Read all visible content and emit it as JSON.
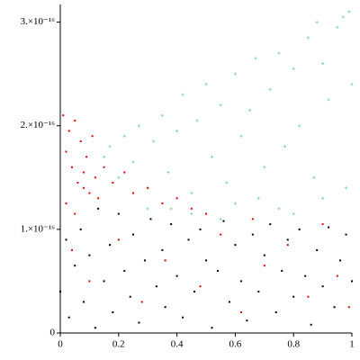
{
  "chart_data": {
    "type": "scatter",
    "xlim": [
      0,
      1
    ],
    "ylim": [
      0,
      3.17e-16
    ],
    "xticks": [
      0,
      0.2,
      0.4,
      0.6,
      0.8,
      1
    ],
    "yticks": [
      0,
      {
        "value": 1e-16,
        "label": "1.×10⁻¹⁶"
      },
      {
        "value": 2e-16,
        "label": "2.×10⁻¹⁶"
      },
      {
        "value": 3e-16,
        "label": "3.×10⁻¹⁶"
      }
    ],
    "grid": false,
    "series": [
      {
        "color": "#80dca2",
        "marker": "cross",
        "x": [
          0.15,
          0.17,
          0.2,
          0.22,
          0.25,
          0.27,
          0.3,
          0.32,
          0.35,
          0.37,
          0.4,
          0.42,
          0.45,
          0.47,
          0.5,
          0.52,
          0.55,
          0.57,
          0.6,
          0.62,
          0.65,
          0.67,
          0.7,
          0.72,
          0.75,
          0.77,
          0.8,
          0.82,
          0.85,
          0.87,
          0.9,
          0.92,
          0.95,
          0.97,
          0.99,
          1.0,
          0.88,
          0.3,
          0.45,
          0.6,
          0.75,
          0.9,
          0.55,
          0.8,
          0.38,
          0.68,
          0.98
        ],
        "y": [
          1.7e-16,
          1.8e-16,
          1.5e-16,
          1.9e-16,
          1.65e-16,
          2e-16,
          1.4e-16,
          1.85e-16,
          2.1e-16,
          1.55e-16,
          1.95e-16,
          2.3e-16,
          1.35e-16,
          2.05e-16,
          2.4e-16,
          1.7e-16,
          2.2e-16,
          1.45e-16,
          2.5e-16,
          1.9e-16,
          2.15e-16,
          2.65e-16,
          1.6e-16,
          2.35e-16,
          2.7e-16,
          1.8e-16,
          2.55e-16,
          2e-16,
          2.85e-16,
          1.5e-16,
          2.6e-16,
          2.25e-16,
          2.95e-16,
          3.05e-16,
          3.1e-16,
          2.4e-16,
          3e-16,
          1.2e-16,
          1.15e-16,
          1.25e-16,
          1.2e-16,
          1.3e-16,
          1.1e-16,
          1.15e-16,
          1.2e-16,
          1.3e-16,
          1.4e-16
        ]
      },
      {
        "color": "#000000",
        "marker": "dot",
        "x": [
          0.0,
          0.02,
          0.03,
          0.05,
          0.07,
          0.08,
          0.1,
          0.12,
          0.13,
          0.15,
          0.17,
          0.18,
          0.2,
          0.22,
          0.24,
          0.25,
          0.27,
          0.29,
          0.31,
          0.33,
          0.35,
          0.36,
          0.38,
          0.4,
          0.42,
          0.44,
          0.46,
          0.48,
          0.5,
          0.52,
          0.54,
          0.56,
          0.58,
          0.6,
          0.62,
          0.64,
          0.66,
          0.68,
          0.7,
          0.72,
          0.74,
          0.76,
          0.78,
          0.8,
          0.82,
          0.84,
          0.86,
          0.88,
          0.9,
          0.92,
          0.94,
          0.96,
          0.98,
          1.0
        ],
        "y": [
          4e-17,
          9e-17,
          1.5e-17,
          6.5e-17,
          1e-16,
          3e-17,
          7.5e-17,
          5e-18,
          1.2e-16,
          5e-17,
          8.5e-17,
          2e-17,
          1.15e-16,
          6e-17,
          3.5e-17,
          9.5e-17,
          1e-17,
          7e-17,
          1.1e-16,
          4.5e-17,
          8e-17,
          2.5e-17,
          1.05e-16,
          5.5e-17,
          1.5e-17,
          9e-17,
          4e-17,
          1e-16,
          7e-17,
          5e-18,
          6e-17,
          1.08e-16,
          3e-17,
          8.5e-17,
          5e-17,
          1.2e-17,
          9.5e-17,
          4e-17,
          7.5e-17,
          1.05e-16,
          2e-17,
          6e-17,
          9e-17,
          3.5e-17,
          1e-16,
          5.5e-17,
          8e-18,
          8e-17,
          4.5e-17,
          1.02e-16,
          2.5e-17,
          7e-17,
          9.5e-17,
          5e-17
        ]
      },
      {
        "color": "#e00000",
        "marker": "dot",
        "x": [
          0.01,
          0.02,
          0.03,
          0.04,
          0.05,
          0.06,
          0.07,
          0.08,
          0.09,
          0.1,
          0.11,
          0.12,
          0.13,
          0.02,
          0.05,
          0.08,
          0.15,
          0.18,
          0.22,
          0.25,
          0.3,
          0.35,
          0.4,
          0.45,
          0.5,
          0.04,
          0.1,
          0.2,
          0.28,
          0.36,
          0.48,
          0.55,
          0.62,
          0.7,
          0.78,
          0.85,
          0.9,
          0.95,
          0.99,
          0.66
        ],
        "y": [
          2.1e-16,
          1.75e-16,
          1.95e-16,
          1.6e-16,
          2.05e-16,
          1.45e-16,
          1.85e-16,
          1.55e-16,
          1.7e-16,
          1.35e-16,
          1.9e-16,
          1.5e-16,
          1.3e-16,
          1.25e-16,
          1.15e-16,
          1.4e-16,
          1.6e-16,
          1.45e-16,
          1.55e-16,
          1.35e-16,
          1.4e-16,
          1.25e-16,
          1.3e-16,
          1.2e-16,
          1.15e-16,
          8e-17,
          5e-17,
          9e-17,
          3e-17,
          7e-17,
          4.5e-17,
          9.5e-17,
          2e-17,
          6.5e-17,
          8.5e-17,
          3.5e-17,
          1.05e-16,
          5.5e-17,
          2.5e-17,
          1.1e-16
        ]
      }
    ]
  }
}
